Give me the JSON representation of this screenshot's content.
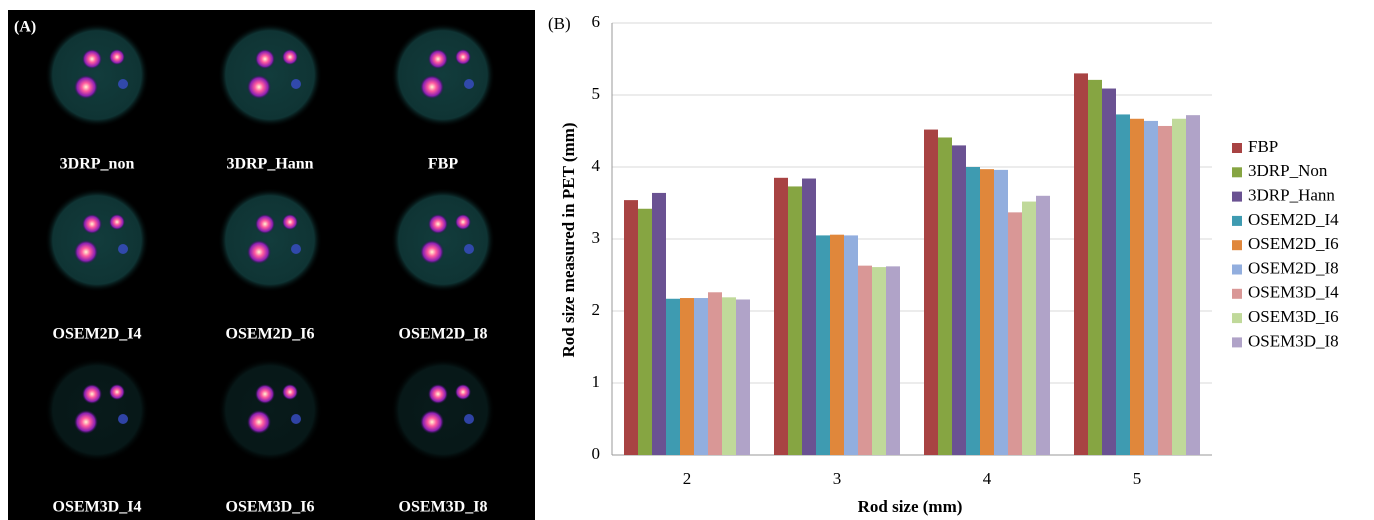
{
  "panel_a": {
    "label": "(A)",
    "images": [
      "3DRP_non",
      "3DRP_Hann",
      "FBP",
      "OSEM2D_I4",
      "OSEM2D_I6",
      "OSEM2D_I8",
      "OSEM3D_I4",
      "OSEM3D_I6",
      "OSEM3D_I8"
    ]
  },
  "chart_data": {
    "type": "bar",
    "panel_label": "(B)",
    "xlabel": "Rod size (mm)",
    "ylabel": "Rod size measured in PET (mm)",
    "categories": [
      "2",
      "3",
      "4",
      "5"
    ],
    "series": [
      {
        "name": "FBP",
        "color": "#a84343",
        "values": [
          3.54,
          3.85,
          4.52,
          5.3
        ]
      },
      {
        "name": "3DRP_Non",
        "color": "#86a542",
        "values": [
          3.42,
          3.73,
          4.41,
          5.21
        ]
      },
      {
        "name": "3DRP_Hann",
        "color": "#6a5292",
        "values": [
          3.64,
          3.84,
          4.3,
          5.09
        ]
      },
      {
        "name": "OSEM2D_I4",
        "color": "#3e9bb1",
        "values": [
          2.17,
          3.05,
          4.0,
          4.73
        ]
      },
      {
        "name": "OSEM2D_I6",
        "color": "#e0873b",
        "values": [
          2.18,
          3.06,
          3.97,
          4.67
        ]
      },
      {
        "name": "OSEM2D_I8",
        "color": "#92aede",
        "values": [
          2.18,
          3.05,
          3.96,
          4.64
        ]
      },
      {
        "name": "OSEM3D_I4",
        "color": "#d99796",
        "values": [
          2.26,
          2.63,
          3.37,
          4.57
        ]
      },
      {
        "name": "OSEM3D_I6",
        "color": "#c0d99a",
        "values": [
          2.19,
          2.61,
          3.52,
          4.67
        ]
      },
      {
        "name": "OSEM3D_I8",
        "color": "#b0a3c8",
        "values": [
          2.16,
          2.62,
          3.6,
          4.72
        ]
      }
    ],
    "ylim": [
      0,
      6
    ],
    "yticks": [
      0,
      1,
      2,
      3,
      4,
      5,
      6
    ],
    "grid": true,
    "legend": "right"
  }
}
